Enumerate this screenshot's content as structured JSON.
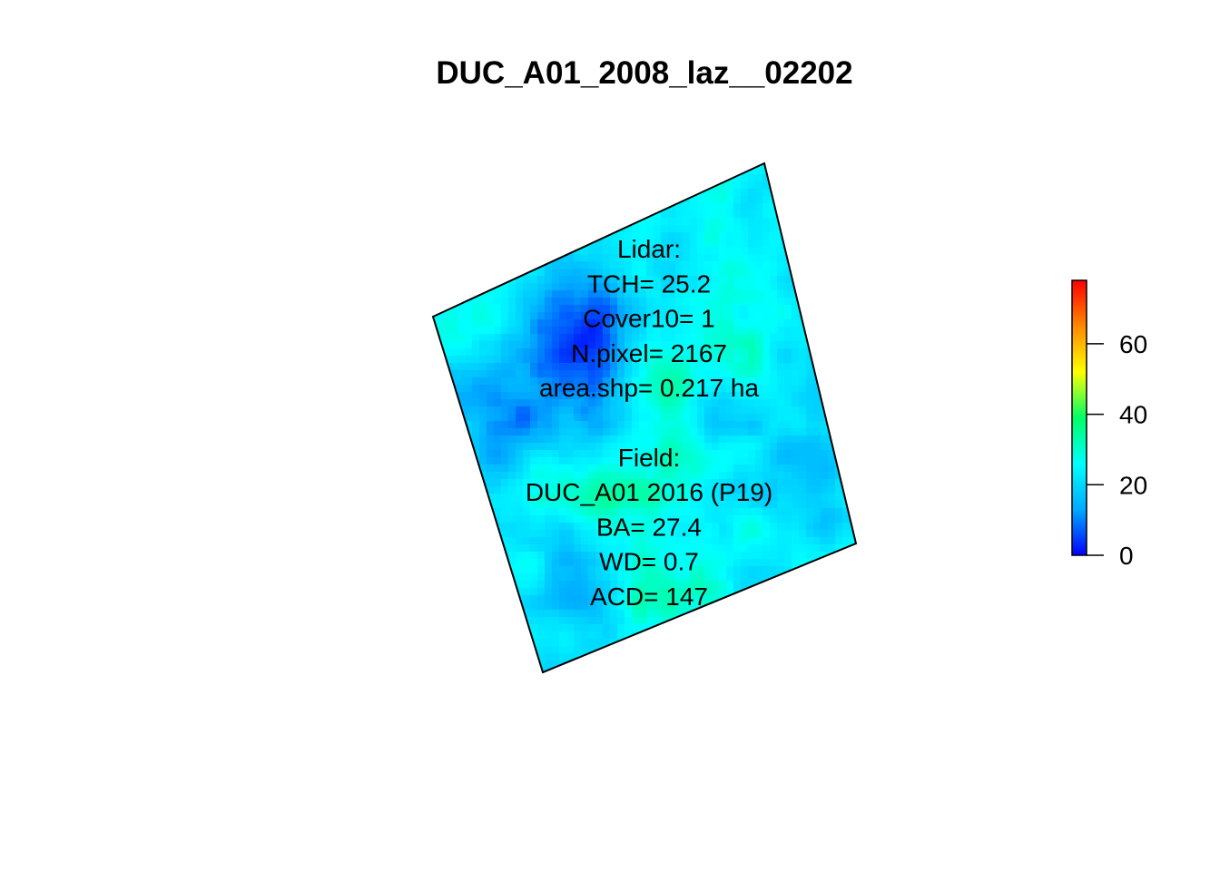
{
  "chart_data": {
    "type": "heatmap",
    "title": "DUC_A01_2008_laz__02202",
    "legend": {
      "position": "right",
      "range": [
        0,
        78
      ],
      "ticks": [
        0,
        20,
        40,
        60
      ],
      "tick_labels": [
        "0",
        "20",
        "40",
        "60"
      ],
      "colors": [
        "#0000FF",
        "#00AAFF",
        "#00FFFF",
        "#00FF66",
        "#FFFF00",
        "#FF8800",
        "#FF0000"
      ]
    },
    "annotation_lines": [
      "Lidar:",
      "TCH= 25.2",
      "Cover10= 1",
      "N.pixel= 2167",
      "area.shp= 0.217 ha",
      "",
      "Field:",
      "DUC_A01 2016 (P19)",
      "BA= 27.4",
      "WD= 0.7",
      "ACD= 147"
    ],
    "grid": false
  }
}
